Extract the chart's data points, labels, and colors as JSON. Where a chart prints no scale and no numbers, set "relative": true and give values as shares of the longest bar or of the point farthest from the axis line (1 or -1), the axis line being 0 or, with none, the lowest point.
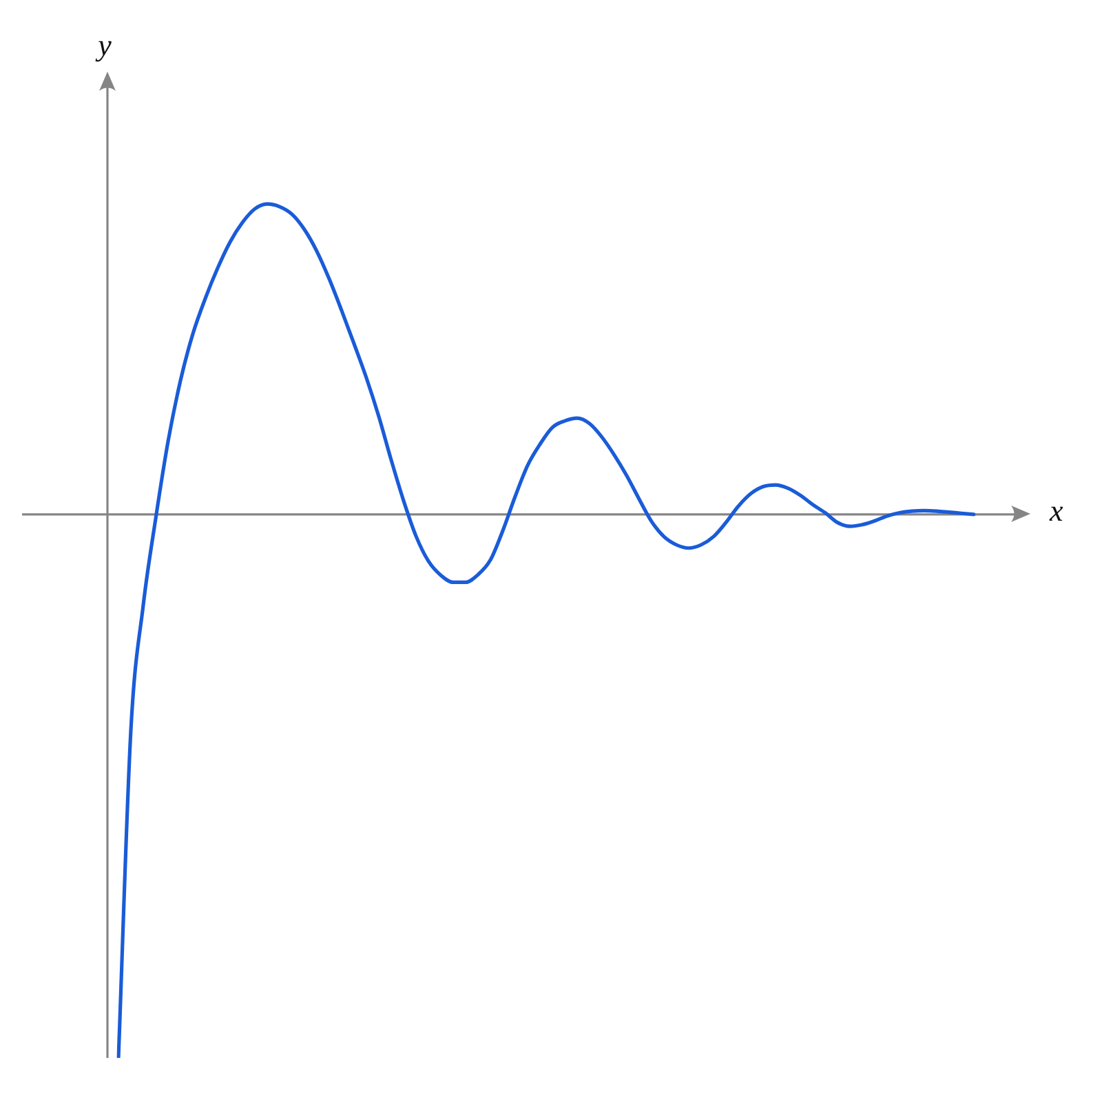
{
  "chart_data": {
    "type": "line",
    "xlabel": "x",
    "ylabel": "y",
    "relative": true,
    "categories": [
      null,
      null,
      null,
      null,
      null,
      null,
      null,
      null,
      null,
      null,
      null,
      null,
      null,
      null,
      null,
      null,
      null,
      null,
      null,
      null,
      null,
      null,
      null,
      null,
      null,
      null,
      null,
      null,
      null,
      null,
      null,
      null,
      null,
      null,
      null,
      null,
      null,
      null,
      null,
      null,
      null,
      null,
      null,
      null,
      null,
      null,
      null,
      null,
      null,
      null,
      null,
      null,
      null,
      null,
      null,
      null,
      null,
      null,
      null,
      null,
      null,
      null,
      null,
      null,
      null,
      null,
      null,
      null,
      null,
      null
    ],
    "series": [
      {
        "color": "#1a5cd8",
        "values": [
          -1,
          -0.397,
          -0.167,
          -0.008,
          0.134,
          0.246,
          0.332,
          0.397,
          0.453,
          0.501,
          0.537,
          0.562,
          0.571,
          0.566,
          0.552,
          0.524,
          0.484,
          0.433,
          0.375,
          0.314,
          0.251,
          0.18,
          0.1,
          0.025,
          -0.04,
          -0.086,
          -0.112,
          -0.125,
          -0.125,
          -0.111,
          -0.084,
          -0.03,
          0.033,
          0.09,
          0.129,
          0.16,
          0.172,
          0.177,
          0.167,
          0.142,
          0.109,
          0.071,
          0.028,
          -0.013,
          -0.041,
          -0.056,
          -0.062,
          -0.056,
          -0.041,
          -0.015,
          0.015,
          0.038,
          0.051,
          0.054,
          0.048,
          0.035,
          0.018,
          0.003,
          -0.015,
          -0.022,
          -0.019,
          -0.012,
          -0.003,
          0.003,
          0.006,
          0.007,
          0.006,
          0.004,
          0.002,
          0
        ]
      }
    ]
  }
}
